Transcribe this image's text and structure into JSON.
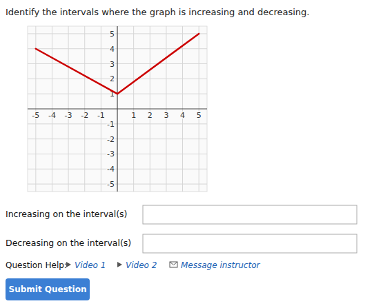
{
  "chart_data": {
    "type": "line",
    "title": "Identify the intervals where the graph is increasing and decreasing.",
    "x": [
      -5,
      0,
      5
    ],
    "values": [
      4,
      1,
      5
    ],
    "color": "#cc0000",
    "xlim": [
      -5.5,
      5.5
    ],
    "ylim": [
      -5.5,
      5.5
    ],
    "xticks": [
      -5,
      -4,
      -3,
      -2,
      -1,
      1,
      2,
      3,
      4,
      5
    ],
    "yticks": [
      -5,
      -4,
      -3,
      -2,
      -1,
      1,
      2,
      3,
      4,
      5
    ],
    "grid": true,
    "annotations": [
      "Increasing on the interval(s)",
      "Decreasing on the interval(s)",
      "Question Help:",
      "Video 1",
      "Video 2",
      "Message instructor",
      "Submit Question"
    ]
  }
}
